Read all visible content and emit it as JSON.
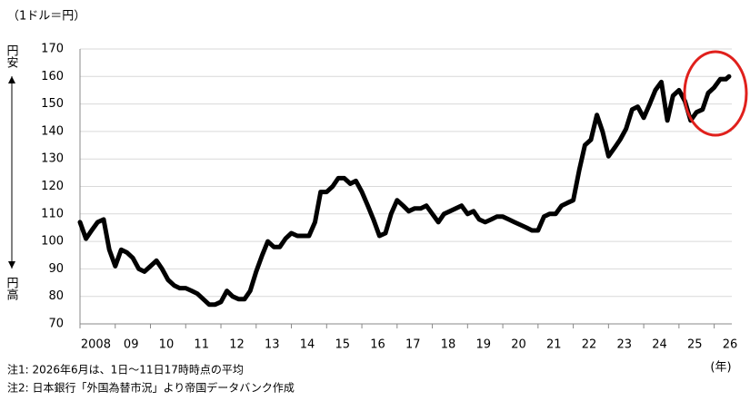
{
  "chart_data": {
    "type": "line",
    "unit_note": "（1ドル＝円）",
    "up_label": "円安",
    "down_label": "円高",
    "x_unit": "(年)",
    "notes": [
      "注1: 2026年6月は、1日～11日17時時点の平均",
      "注2: 日本銀行「外国為替市況」より帝国データバンク作成"
    ],
    "x": [
      2008.0,
      2008.17,
      2008.33,
      2008.5,
      2008.67,
      2008.83,
      2009.0,
      2009.17,
      2009.33,
      2009.5,
      2009.67,
      2009.83,
      2010.0,
      2010.17,
      2010.33,
      2010.5,
      2010.67,
      2010.83,
      2011.0,
      2011.17,
      2011.33,
      2011.5,
      2011.67,
      2011.83,
      2012.0,
      2012.17,
      2012.33,
      2012.5,
      2012.67,
      2012.83,
      2013.0,
      2013.17,
      2013.33,
      2013.5,
      2013.67,
      2013.83,
      2014.0,
      2014.17,
      2014.33,
      2014.5,
      2014.67,
      2014.83,
      2015.0,
      2015.17,
      2015.33,
      2015.5,
      2015.67,
      2015.83,
      2016.0,
      2016.17,
      2016.33,
      2016.5,
      2016.67,
      2016.83,
      2017.0,
      2017.17,
      2017.33,
      2017.5,
      2017.67,
      2017.83,
      2018.0,
      2018.17,
      2018.33,
      2018.5,
      2018.67,
      2018.83,
      2019.0,
      2019.17,
      2019.33,
      2019.5,
      2019.67,
      2019.83,
      2020.0,
      2020.17,
      2020.33,
      2020.5,
      2020.67,
      2020.83,
      2021.0,
      2021.17,
      2021.33,
      2021.5,
      2021.67,
      2021.83,
      2022.0,
      2022.17,
      2022.33,
      2022.5,
      2022.67,
      2022.83,
      2023.0,
      2023.17,
      2023.33,
      2023.5,
      2023.67,
      2023.83,
      2024.0,
      2024.17,
      2024.33,
      2024.5,
      2024.67,
      2024.83,
      2025.0,
      2025.17,
      2025.33,
      2025.5,
      2025.67,
      2025.83,
      2026.0,
      2026.17,
      2026.33,
      2026.42
    ],
    "series": [
      {
        "color": "#000000",
        "values": [
          107,
          101,
          104,
          107,
          108,
          97,
          91,
          97,
          96,
          94,
          90,
          89,
          91,
          93,
          90,
          86,
          84,
          83,
          83,
          82,
          81,
          79,
          77,
          77,
          78,
          82,
          80,
          79,
          79,
          82,
          89,
          95,
          100,
          98,
          98,
          101,
          103,
          102,
          102,
          102,
          107,
          118,
          118,
          120,
          123,
          123,
          121,
          122,
          118,
          113,
          108,
          102,
          103,
          110,
          115,
          113,
          111,
          112,
          112,
          113,
          110,
          107,
          110,
          111,
          112,
          113,
          110,
          111,
          108,
          107,
          108,
          109,
          109,
          108,
          107,
          106,
          105,
          104,
          104,
          109,
          110,
          110,
          113,
          114,
          115,
          126,
          135,
          137,
          146,
          140,
          131,
          134,
          137,
          141,
          148,
          149,
          145,
          150,
          155,
          158,
          144,
          153,
          155,
          151,
          144,
          147,
          148,
          154,
          156,
          159,
          159,
          160
        ]
      }
    ],
    "xlim": [
      2008,
      2026.5
    ],
    "xticks": [
      {
        "value": 2008,
        "label": "2008"
      },
      {
        "value": 2009,
        "label": "09"
      },
      {
        "value": 2010,
        "label": "10"
      },
      {
        "value": 2011,
        "label": "11"
      },
      {
        "value": 2012,
        "label": "12"
      },
      {
        "value": 2013,
        "label": "13"
      },
      {
        "value": 2014,
        "label": "14"
      },
      {
        "value": 2015,
        "label": "15"
      },
      {
        "value": 2016,
        "label": "16"
      },
      {
        "value": 2017,
        "label": "17"
      },
      {
        "value": 2018,
        "label": "18"
      },
      {
        "value": 2019,
        "label": "19"
      },
      {
        "value": 2020,
        "label": "20"
      },
      {
        "value": 2021,
        "label": "21"
      },
      {
        "value": 2022,
        "label": "22"
      },
      {
        "value": 2023,
        "label": "23"
      },
      {
        "value": 2024,
        "label": "24"
      },
      {
        "value": 2025,
        "label": "25"
      },
      {
        "value": 2026,
        "label": "26"
      }
    ],
    "ylim": [
      70,
      170
    ],
    "yticks": [
      70,
      80,
      90,
      100,
      110,
      120,
      130,
      140,
      150,
      160,
      170
    ],
    "grid": true
  }
}
